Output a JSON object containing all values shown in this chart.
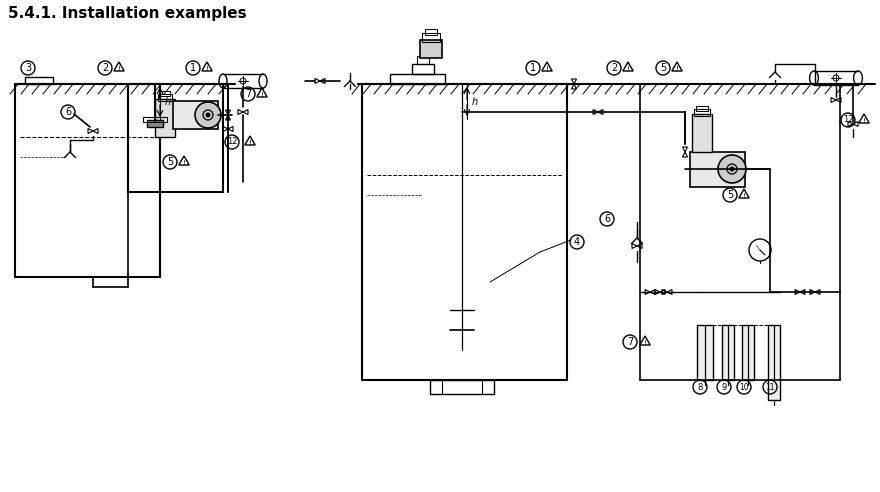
{
  "title": "5.4.1. Installation examples",
  "title_fontsize": 11,
  "title_fontweight": "bold",
  "bg_color": "#ffffff",
  "line_color": "#000000",
  "line_width": 1.2,
  "fig_width": 8.8,
  "fig_height": 4.92,
  "dpi": 100
}
